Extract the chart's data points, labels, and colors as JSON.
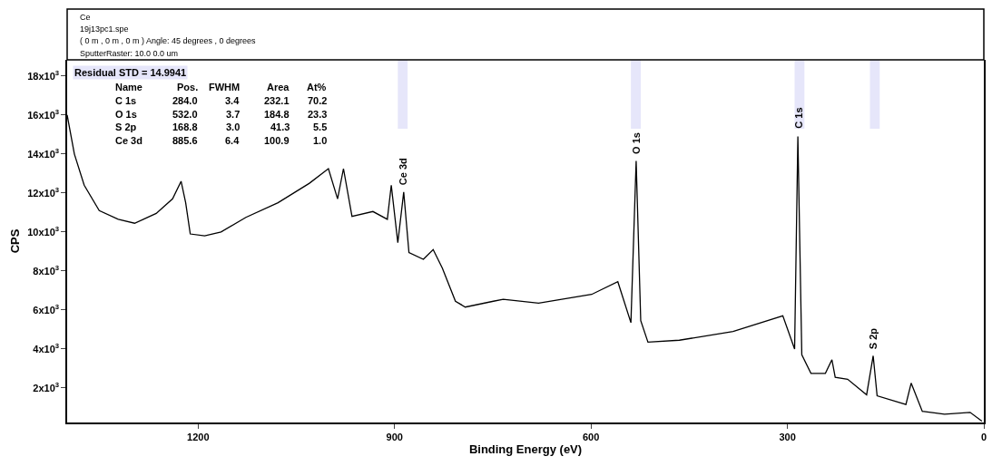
{
  "chart_data": {
    "type": "line",
    "xlabel": "Binding Energy (eV)",
    "ylabel": "CPS",
    "x": [
      1400,
      1389,
      1374,
      1351,
      1322,
      1297,
      1264,
      1239,
      1226,
      1219,
      1212,
      1190,
      1165,
      1127,
      1078,
      1030,
      1001,
      987,
      978,
      965,
      933,
      911,
      905,
      895,
      886,
      878,
      856,
      841,
      827,
      807,
      792,
      749,
      734,
      680,
      599,
      559,
      539,
      531,
      524,
      513,
      465,
      383,
      307,
      289,
      284,
      278,
      264,
      242,
      232,
      227,
      208,
      179,
      169,
      163,
      119,
      111,
      94,
      60,
      21,
      3
    ],
    "series": [
      {
        "color": "#000000",
        "values": [
          16000,
          14000,
          12400,
          11100,
          10650,
          10450,
          10950,
          11700,
          12600,
          11500,
          9900,
          9800,
          10000,
          10750,
          11500,
          12500,
          13250,
          11700,
          13250,
          10800,
          11050,
          10650,
          12400,
          9450,
          12050,
          8950,
          8600,
          9100,
          8150,
          6450,
          6150,
          6450,
          6550,
          6350,
          6800,
          7450,
          5350,
          13650,
          5450,
          4350,
          4450,
          4900,
          5700,
          4000,
          14900,
          3700,
          2750,
          2750,
          3450,
          2550,
          2450,
          1650,
          3650,
          1600,
          1150,
          2250,
          800,
          650,
          750,
          300
        ]
      }
    ],
    "xlim": [
      1400,
      0
    ],
    "xticks": [
      1200,
      900,
      600,
      300,
      0
    ],
    "ylim": [
      230,
      18830
    ],
    "yticks": [
      {
        "value": 2000,
        "label": "2x10$^{3}$"
      },
      {
        "value": 4000,
        "label": "4x10$^{3}$"
      },
      {
        "value": 6000,
        "label": "6x10$^{3}$"
      },
      {
        "value": 8000,
        "label": "8x10$^{3}$"
      },
      {
        "value": 10000,
        "label": "10x10$^{3}$"
      },
      {
        "value": 12000,
        "label": "12x10$^{3}$"
      },
      {
        "value": 14000,
        "label": "14x10$^{3}$"
      },
      {
        "value": 16000,
        "label": "16x10$^{3}$"
      },
      {
        "value": 18000,
        "label": "18x10$^{3}$"
      }
    ],
    "bands": [
      {
        "axis": "x",
        "from": 895,
        "to": 880,
        "color": "#e6e6fa"
      },
      {
        "axis": "x",
        "from": 539,
        "to": 524,
        "color": "#e6e6fa"
      },
      {
        "axis": "x",
        "from": 289,
        "to": 274,
        "color": "#e6e6fa"
      },
      {
        "axis": "x",
        "from": 174,
        "to": 159,
        "color": "#e6e6fa"
      }
    ],
    "annotations": [
      "Ce",
      "19j13pc1.spe",
      "( 0 m , 0 m , 0 m ) Angle: 45 degrees , 0 degrees",
      "SputterRaster: 10.0 0.0 um",
      "Residual STD = 14.9941",
      "Name  Pos.  FWHM  Area  At%",
      "C 1s  284.0  3.4  232.1  70.2",
      "O 1s  532.0  3.7  184.8  23.3",
      "S 2p  168.8  3.0  41.3  5.5",
      "Ce 3d  885.6  6.4  100.9  1.0",
      {
        "text": "Ce 3d",
        "x": 886,
        "y": 12300
      },
      {
        "text": "O 1s",
        "x": 531,
        "y": 13900
      },
      {
        "text": "C 1s",
        "x": 284,
        "y": 15200
      },
      {
        "text": "S 2p",
        "x": 169,
        "y": 3900
      }
    ],
    "grid": false,
    "marker": "none",
    "line_style": "solid"
  }
}
